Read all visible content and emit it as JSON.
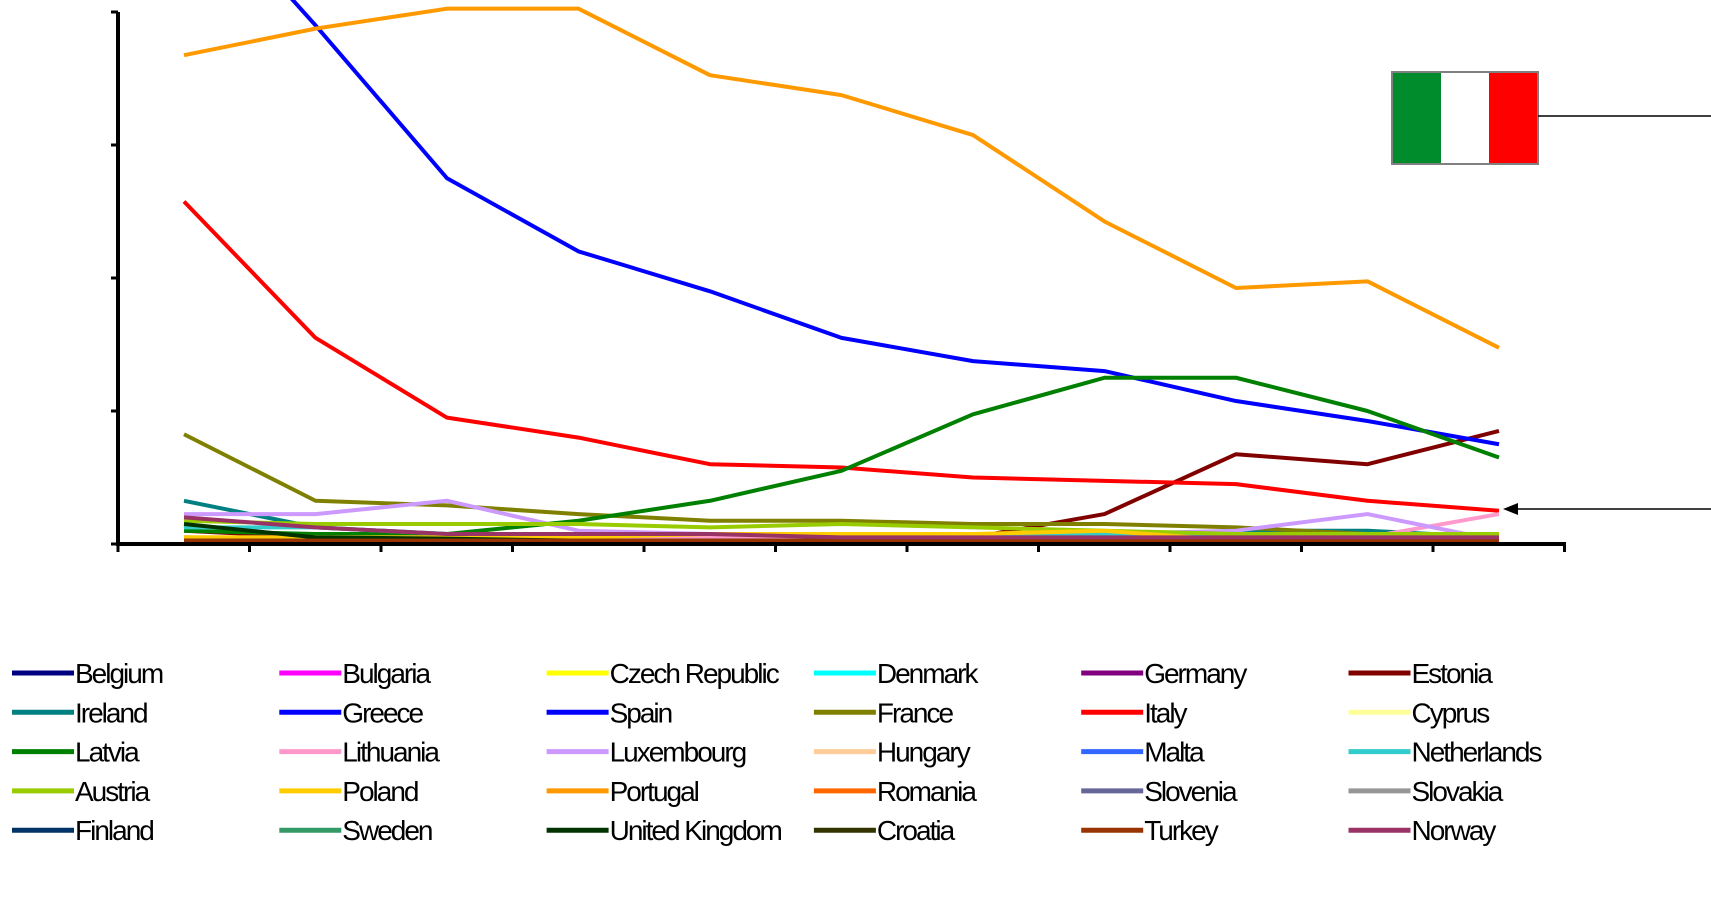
{
  "chart_data": {
    "type": "line",
    "title": "",
    "xlabel": "",
    "ylabel": "",
    "x": [
      1,
      2,
      3,
      4,
      5,
      6,
      7,
      8,
      9,
      10,
      11
    ],
    "ylim": [
      0,
      80
    ],
    "y_gridlines": false,
    "legend_position": "bottom",
    "series": [
      {
        "name": "Belgium",
        "color": "#000080",
        "values": [
          0.5,
          0.3,
          0.3,
          0.3,
          0.3,
          0.3,
          0.3,
          0.3,
          0.3,
          0.3,
          0.3
        ]
      },
      {
        "name": "Bulgaria",
        "color": "#ff00ff",
        "values": [
          0.5,
          0.5,
          0.5,
          0.5,
          0.5,
          0.5,
          0.5,
          0.5,
          0.5,
          0.5,
          0.5
        ]
      },
      {
        "name": "Czech Republic",
        "color": "#ffff00",
        "values": [
          1.0,
          1.0,
          1.0,
          1.0,
          1.0,
          1.0,
          1.0,
          1.0,
          0.5,
          0.5,
          0.5
        ]
      },
      {
        "name": "Denmark",
        "color": "#00ffff",
        "values": [
          0.3,
          0.3,
          0.3,
          0.3,
          0.3,
          0.3,
          0.3,
          0.3,
          0.3,
          0.3,
          0.3
        ]
      },
      {
        "name": "Germany",
        "color": "#800080",
        "values": [
          1.0,
          0.8,
          0.8,
          0.8,
          0.8,
          0.5,
          0.5,
          0.5,
          0.5,
          0.5,
          0.5
        ]
      },
      {
        "name": "Estonia",
        "color": "#800000",
        "values": [
          2.0,
          1.0,
          1.0,
          1.5,
          1.5,
          1.0,
          1.0,
          4.5,
          13.5,
          12.0,
          17.0
        ]
      },
      {
        "name": "Ireland",
        "color": "#008080",
        "values": [
          6.5,
          2.5,
          1.5,
          1.0,
          1.0,
          1.0,
          1.0,
          1.0,
          2.0,
          2.0,
          1.0
        ]
      },
      {
        "name": "Greece",
        "color": "#0000ff",
        "values": [
          0.5,
          0.5,
          0.5,
          0.5,
          0.5,
          0.5,
          0.5,
          0.5,
          0.5,
          0.5,
          0.5
        ]
      },
      {
        "name": "Spain",
        "color": "#0000ff",
        "values": [
          100,
          78,
          55,
          44,
          38,
          31,
          27.5,
          26,
          21.5,
          18.5,
          15
        ]
      },
      {
        "name": "France",
        "color": "#808000",
        "values": [
          16.5,
          6.5,
          5.8,
          4.5,
          3.5,
          3.5,
          3.0,
          3.0,
          2.5,
          1.5,
          1.0
        ]
      },
      {
        "name": "Italy",
        "color": "#ff0000",
        "values": [
          51.5,
          31,
          19,
          16,
          12,
          11.5,
          10,
          9.5,
          9,
          6.5,
          5
        ]
      },
      {
        "name": "Cyprus",
        "color": "#ffff99",
        "values": [
          0.5,
          0.5,
          0.5,
          0.5,
          0.5,
          0.5,
          0.5,
          0.5,
          0.5,
          0.5,
          0.5
        ]
      },
      {
        "name": "Latvia",
        "color": "#008000",
        "values": [
          2.0,
          1.5,
          1.5,
          3.5,
          6.5,
          11,
          19.5,
          25,
          25,
          20,
          13
        ]
      },
      {
        "name": "Lithuania",
        "color": "#ff99cc",
        "values": [
          1.0,
          1.0,
          1.0,
          1.0,
          1.0,
          1.0,
          1.0,
          1.0,
          1.0,
          1.0,
          4.5
        ]
      },
      {
        "name": "Luxembourg",
        "color": "#cc99ff",
        "values": [
          4.5,
          4.5,
          6.5,
          2.0,
          1.5,
          1.5,
          1.5,
          1.5,
          2.0,
          4.5,
          0.5
        ]
      },
      {
        "name": "Hungary",
        "color": "#ffcc99",
        "values": [
          0.5,
          0.5,
          0.5,
          0.5,
          0.5,
          0.5,
          0.5,
          0.5,
          0.5,
          0.5,
          0.5
        ]
      },
      {
        "name": "Malta",
        "color": "#3366ff",
        "values": [
          0.5,
          0.5,
          0.5,
          0.5,
          0.5,
          0.5,
          0.5,
          0.5,
          0.5,
          0.5,
          0.5
        ]
      },
      {
        "name": "Netherlands",
        "color": "#33cccc",
        "values": [
          2.5,
          2.5,
          1.5,
          1.5,
          1.5,
          1.5,
          1.5,
          1.5,
          1.5,
          1.5,
          1.0
        ]
      },
      {
        "name": "Austria",
        "color": "#99cc00",
        "values": [
          3.5,
          3.0,
          3.0,
          3.0,
          2.5,
          3.0,
          2.5,
          2.0,
          1.5,
          1.5,
          1.5
        ]
      },
      {
        "name": "Poland",
        "color": "#ffcc00",
        "values": [
          1.0,
          1.0,
          1.0,
          1.0,
          1.5,
          1.5,
          1.5,
          2.0,
          0.5,
          0.5,
          0.5
        ]
      },
      {
        "name": "Portugal",
        "color": "#ff9900",
        "values": [
          73.5,
          77.5,
          80.5,
          80.5,
          70.5,
          67.5,
          61.5,
          48.5,
          38.5,
          39.5,
          29.5
        ]
      },
      {
        "name": "Romania",
        "color": "#ff6600",
        "values": [
          0.5,
          0.5,
          0.5,
          0.5,
          0.5,
          0.5,
          0.5,
          0.5,
          0.5,
          0.5,
          0.5
        ]
      },
      {
        "name": "Slovenia",
        "color": "#666699",
        "values": [
          0.5,
          0.5,
          0.5,
          0.5,
          0.5,
          0.5,
          0.5,
          0.5,
          0.5,
          0.5,
          0.5
        ]
      },
      {
        "name": "Slovakia",
        "color": "#969696",
        "values": [
          0.5,
          0.5,
          0.5,
          0.5,
          0.5,
          0.5,
          0.5,
          0.5,
          0.5,
          0.5,
          0.5
        ]
      },
      {
        "name": "Finland",
        "color": "#003366",
        "values": [
          0.5,
          0.5,
          0.5,
          0.5,
          0.5,
          0.5,
          0.5,
          0.5,
          0.5,
          0.5,
          0.5
        ]
      },
      {
        "name": "Sweden",
        "color": "#339966",
        "values": [
          0.5,
          0.5,
          0.5,
          0.5,
          0.5,
          0.5,
          0.5,
          0.5,
          0.5,
          0.5,
          0.5
        ]
      },
      {
        "name": "United Kingdom",
        "color": "#003300",
        "values": [
          3.0,
          1.0,
          0.8,
          0.5,
          0.5,
          0.5,
          0.5,
          0.5,
          0.5,
          0.5,
          0.5
        ]
      },
      {
        "name": "Croatia",
        "color": "#333300",
        "values": [
          0.5,
          0.5,
          0.5,
          0.5,
          0.5,
          0.5,
          0.5,
          0.5,
          0.5,
          0.5,
          0.5
        ]
      },
      {
        "name": "Turkey",
        "color": "#993300",
        "values": [
          0.5,
          0.5,
          0.5,
          0.5,
          0.5,
          0.5,
          0.5,
          0.5,
          0.5,
          0.5,
          0.5
        ]
      },
      {
        "name": "Norway",
        "color": "#993366",
        "values": [
          4.0,
          2.5,
          1.5,
          1.5,
          1.5,
          1.0,
          1.0,
          1.0,
          1.0,
          1.0,
          1.0
        ]
      }
    ],
    "legend_columns": 6,
    "annotations": [
      {
        "type": "flag",
        "name": "Italy flag",
        "colors": [
          "#008c2d",
          "#ffffff",
          "#ff0000"
        ]
      },
      {
        "type": "arrow",
        "target_series": "Italy"
      }
    ]
  }
}
